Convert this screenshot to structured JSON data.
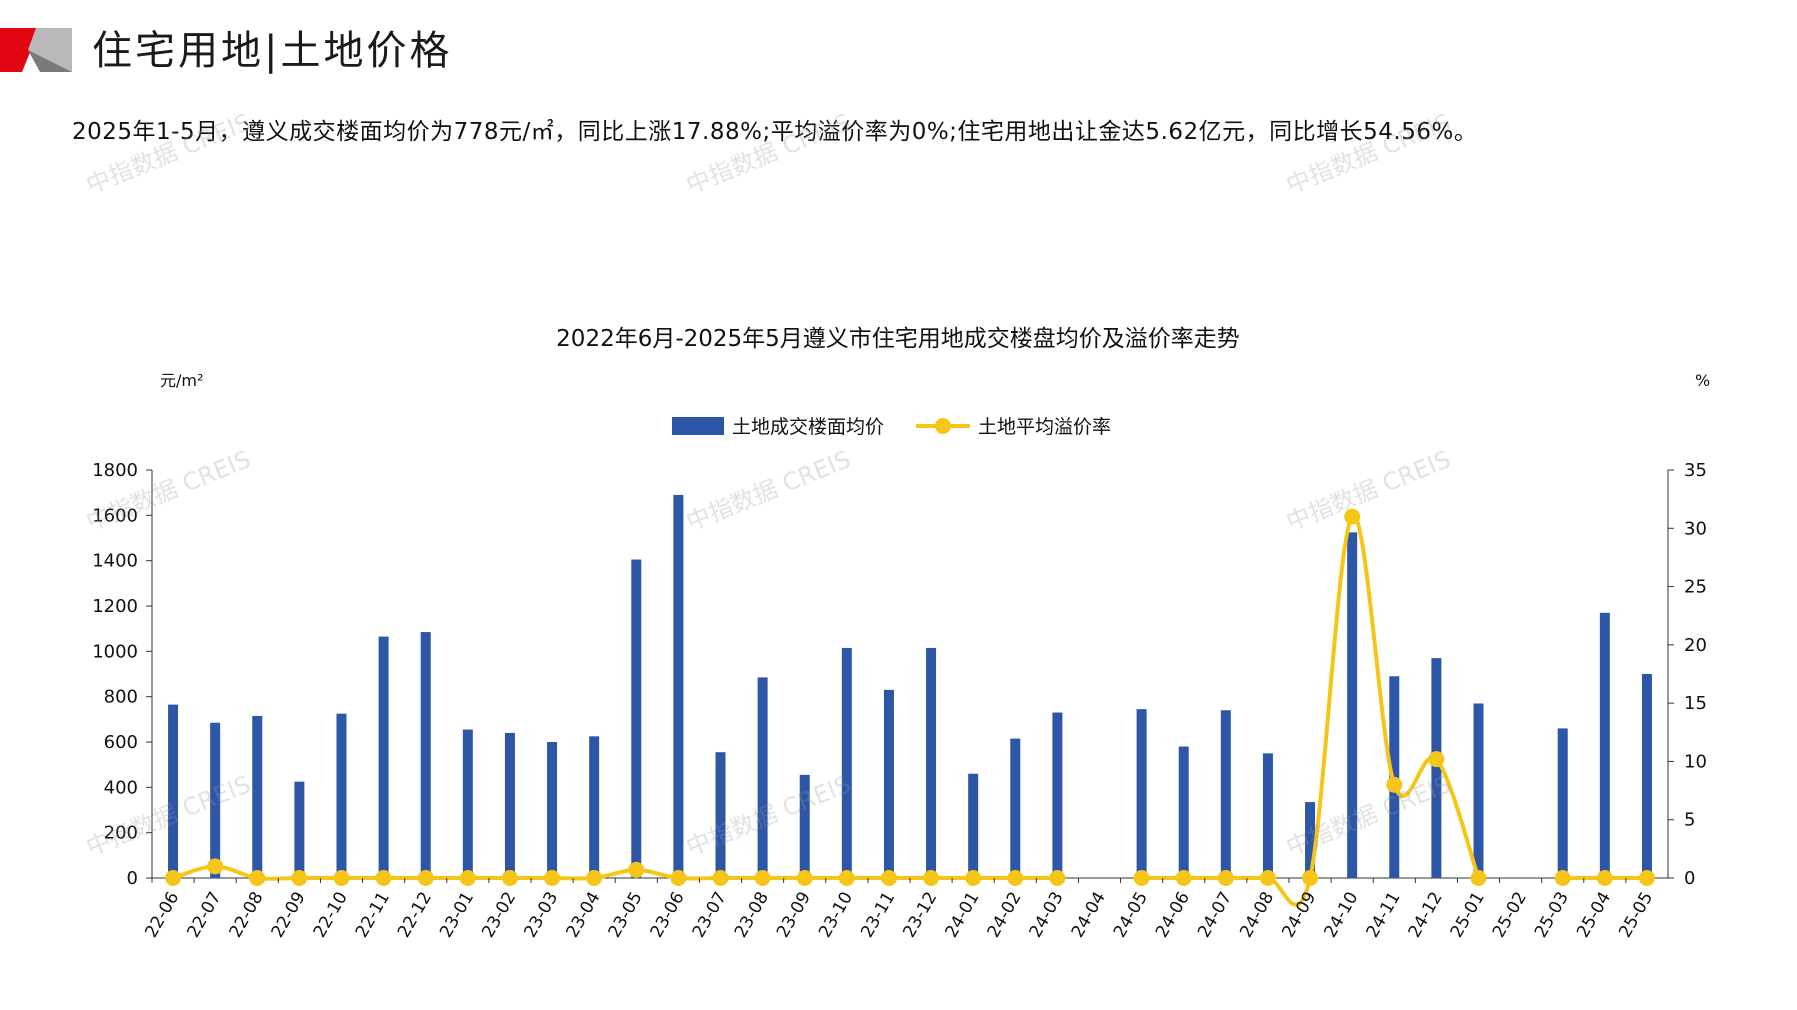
{
  "page": {
    "title": "住宅用地|土地价格",
    "summary": "2025年1-5月，遵义成交楼面均价为778元/㎡，同比上涨17.88%;平均溢价率为0%;住宅用地出让金达5.62亿元，同比增长54.56%。",
    "watermark": "中指数据 CREIS"
  },
  "colors": {
    "bar": "#2E56A6",
    "line": "#F5C518",
    "accent_red": "#E30613"
  },
  "chart_data": {
    "type": "bar",
    "title": "2022年6月-2025年5月遵义市住宅用地成交楼盘均价及溢价率走势",
    "y_left_unit": "元/m²",
    "y_right_unit": "%",
    "ylim_left": [
      0,
      1800
    ],
    "ylim_right": [
      0,
      35
    ],
    "yticks_left": [
      "0",
      "200",
      "400",
      "600",
      "800",
      "1000",
      "1200",
      "1400",
      "1600",
      "1800"
    ],
    "yticks_right": [
      "0",
      "5",
      "10",
      "15",
      "20",
      "25",
      "30",
      "35"
    ],
    "legend_position": "top-center",
    "categories": [
      "22-06",
      "22-07",
      "22-08",
      "22-09",
      "22-10",
      "22-11",
      "22-12",
      "23-01",
      "23-02",
      "23-03",
      "23-04",
      "23-05",
      "23-06",
      "23-07",
      "23-08",
      "23-09",
      "23-10",
      "23-11",
      "23-12",
      "24-01",
      "24-02",
      "24-03",
      "24-04",
      "24-05",
      "24-06",
      "24-07",
      "24-08",
      "24-09",
      "24-10",
      "24-11",
      "24-12",
      "25-01",
      "25-02",
      "25-03",
      "25-04",
      "25-05"
    ],
    "series": [
      {
        "name": "土地成交楼面均价",
        "kind": "bar",
        "axis": "left",
        "values": [
          765,
          685,
          715,
          425,
          725,
          1065,
          1085,
          655,
          640,
          600,
          625,
          1405,
          1690,
          555,
          885,
          455,
          1015,
          830,
          1015,
          460,
          615,
          730,
          null,
          745,
          580,
          740,
          550,
          335,
          1525,
          890,
          970,
          770,
          null,
          660,
          1170,
          900
        ]
      },
      {
        "name": "土地平均溢价率",
        "kind": "line",
        "axis": "right",
        "values": [
          0,
          1,
          0,
          0,
          0,
          0,
          0,
          0,
          0,
          0,
          0,
          0.7,
          0,
          0,
          0,
          0,
          0,
          0,
          0,
          0,
          0,
          0,
          null,
          0,
          0,
          0,
          0,
          0,
          31,
          8,
          10.2,
          0,
          null,
          0,
          0,
          0
        ]
      }
    ]
  }
}
